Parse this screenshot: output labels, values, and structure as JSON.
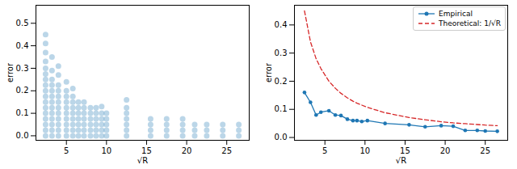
{
  "chart_data": [
    {
      "type": "scatter",
      "x_label": "√R",
      "y_label": "error",
      "color": "#1f77b4",
      "xlim": [
        1.2,
        27.8
      ],
      "xticks": [
        5,
        10,
        15,
        20,
        25
      ],
      "ylim": [
        -0.02,
        0.58
      ],
      "yticks": [
        {
          "value": 0,
          "label": "0.0"
        },
        0.1,
        0.2,
        0.3,
        0.4,
        0.5
      ],
      "grid": false,
      "x": [
        2.4,
        2.4,
        2.4,
        2.4,
        2.4,
        2.4,
        2.4,
        2.4,
        2.4,
        2.4,
        2.4,
        2.4,
        2.4,
        2.4,
        2.4,
        2.4,
        2.4,
        3.2,
        3.2,
        3.2,
        3.2,
        3.2,
        3.2,
        3.2,
        3.2,
        3.2,
        3.2,
        3.2,
        3.2,
        3.2,
        4,
        4,
        4,
        4,
        4,
        4,
        4,
        4,
        4,
        4,
        4,
        4,
        5,
        5,
        5,
        5,
        5,
        5,
        5,
        5,
        5,
        5,
        5.8,
        5.8,
        5.8,
        5.8,
        5.8,
        5.8,
        5.8,
        5.8,
        5.8,
        6.5,
        6.5,
        6.5,
        6.5,
        6.5,
        6.5,
        6.5,
        7.2,
        7.2,
        7.2,
        7.2,
        7.2,
        7.2,
        7.2,
        8,
        8,
        8,
        8,
        8,
        8,
        8.7,
        8.7,
        8.7,
        8.7,
        8.7,
        8.7,
        9.4,
        9.4,
        9.4,
        9.4,
        9.4,
        9.4,
        10,
        10,
        10,
        10,
        10,
        12.5,
        12.5,
        12.5,
        12.5,
        12.5,
        12.5,
        12.5,
        15.5,
        15.5,
        15.5,
        15.5,
        17.5,
        17.5,
        17.5,
        17.5,
        19.5,
        19.5,
        19.5,
        19.5,
        21,
        21,
        21,
        22.5,
        22.5,
        22.5,
        24.5,
        24.5,
        24.5,
        26.5,
        26.5,
        26.5
      ],
      "values": [
        0,
        0.025,
        0.05,
        0.075,
        0.1,
        0.125,
        0.15,
        0.175,
        0.2,
        0.225,
        0.25,
        0.275,
        0.3,
        0.33,
        0.37,
        0.41,
        0.45,
        0,
        0.025,
        0.05,
        0.075,
        0.1,
        0.125,
        0.15,
        0.175,
        0.2,
        0.225,
        0.25,
        0.29,
        0.35,
        0,
        0.025,
        0.05,
        0.075,
        0.1,
        0.125,
        0.15,
        0.175,
        0.2,
        0.225,
        0.27,
        0.31,
        0,
        0.025,
        0.05,
        0.075,
        0.1,
        0.125,
        0.15,
        0.175,
        0.2,
        0.24,
        0,
        0.025,
        0.05,
        0.075,
        0.1,
        0.125,
        0.15,
        0.175,
        0.21,
        0,
        0.025,
        0.05,
        0.075,
        0.1,
        0.125,
        0.15,
        0,
        0.025,
        0.05,
        0.075,
        0.1,
        0.125,
        0.15,
        0,
        0.025,
        0.05,
        0.075,
        0.1,
        0.125,
        0,
        0.025,
        0.05,
        0.075,
        0.1,
        0.125,
        0,
        0.025,
        0.05,
        0.075,
        0.1,
        0.13,
        0,
        0.025,
        0.05,
        0.075,
        0.1,
        0,
        0.025,
        0.05,
        0.075,
        0.1,
        0.125,
        0.16,
        0,
        0.025,
        0.05,
        0.075,
        0,
        0.025,
        0.05,
        0.075,
        0,
        0.025,
        0.05,
        0.075,
        0,
        0.025,
        0.05,
        0,
        0.025,
        0.05,
        0,
        0.025,
        0.05,
        0,
        0.025,
        0.05
      ]
    },
    {
      "type": "line",
      "x_label": "√R",
      "y_label": "error",
      "xlim": [
        1.2,
        27.8
      ],
      "xticks": [
        5,
        10,
        15,
        20,
        25
      ],
      "ylim": [
        -0.01,
        0.47
      ],
      "yticks": [
        {
          "value": 0,
          "label": "0.0"
        },
        0.1,
        0.2,
        0.3,
        0.4
      ],
      "grid": false,
      "legend": "upper right",
      "x": [
        2.45,
        3.2,
        3.9,
        4.5,
        5.5,
        6.3,
        7,
        7.8,
        8.5,
        9,
        9.6,
        10.3,
        12.5,
        15.5,
        17.5,
        19.5,
        21,
        22.5,
        24,
        25,
        26.5
      ],
      "series": [
        {
          "name": "Empirical",
          "color": "#1f77b4",
          "marker": "circle",
          "line_style": "solid",
          "values": [
            0.16,
            0.125,
            0.08,
            0.09,
            0.095,
            0.08,
            0.078,
            0.065,
            0.06,
            0.06,
            0.057,
            0.06,
            0.05,
            0.045,
            0.038,
            0.042,
            0.04,
            0.025,
            0.025,
            0.023,
            0.022
          ]
        },
        {
          "name": "Theoretical: 1/√R",
          "color": "#d62728",
          "marker": "none",
          "line_style": "dashed",
          "values": [
            0.45,
            0.34,
            0.28,
            0.245,
            0.2,
            0.175,
            0.157,
            0.141,
            0.129,
            0.122,
            0.115,
            0.107,
            0.088,
            0.071,
            0.063,
            0.056,
            0.052,
            0.049,
            0.046,
            0.044,
            0.042
          ]
        }
      ]
    }
  ]
}
